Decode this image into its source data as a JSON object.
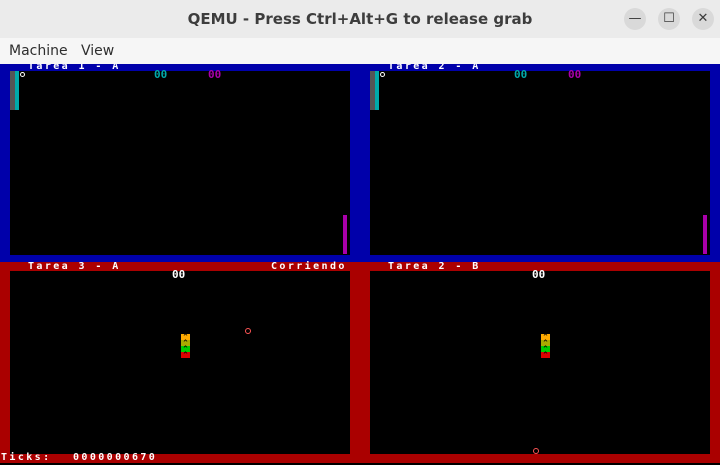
{
  "window": {
    "title": "QEMU - Press Ctrl+Alt+G to release grab",
    "controls": {
      "minimize": "—",
      "maximize": "☐",
      "close": "✕"
    }
  },
  "menu": {
    "machine": "Machine",
    "view": "View"
  },
  "colors": {
    "top_band": "#0000aa",
    "bottom_band": "#aa0000",
    "cyan": "#00aaaa",
    "magenta": "#aa00aa"
  },
  "panels": {
    "p1": {
      "label": "Tarea 1 - A",
      "score_left": "00",
      "score_right": "00"
    },
    "p2": {
      "label": "Tarea 2 - A",
      "score_left": "00",
      "score_right": "00"
    },
    "p3": {
      "label": "Tarea 3 - A",
      "status": "Corriendo",
      "score": "00",
      "snake": [
        "^",
        "^",
        "^",
        "^"
      ]
    },
    "p4": {
      "label": "Tarea 2 - B",
      "score": "00",
      "snake": [
        "^",
        "^",
        "^",
        "^"
      ]
    }
  },
  "footer": {
    "ticks_label": "Ticks:",
    "ticks_value": "0000000670"
  }
}
